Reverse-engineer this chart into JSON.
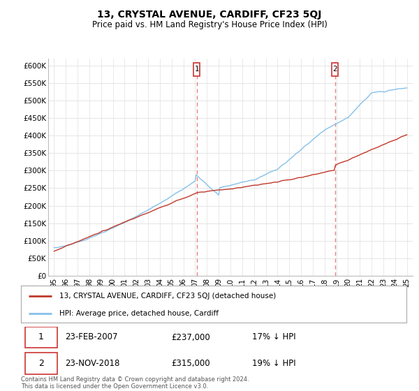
{
  "title": "13, CRYSTAL AVENUE, CARDIFF, CF23 5QJ",
  "subtitle": "Price paid vs. HM Land Registry's House Price Index (HPI)",
  "ylim": [
    0,
    620000
  ],
  "yticks": [
    0,
    50000,
    100000,
    150000,
    200000,
    250000,
    300000,
    350000,
    400000,
    450000,
    500000,
    550000,
    600000
  ],
  "xlim": [
    1994.5,
    2025.5
  ],
  "hpi_color": "#85c1e9",
  "price_color": "#c0392b",
  "dashed_color": "#e8a0a0",
  "background_color": "#ffffff",
  "grid_color": "#e0e0e0",
  "sale1_year": 2007.14,
  "sale2_year": 2018.9,
  "legend_line1": "13, CRYSTAL AVENUE, CARDIFF, CF23 5QJ (detached house)",
  "legend_line2": "HPI: Average price, detached house, Cardiff",
  "table_row1": [
    "1",
    "23-FEB-2007",
    "£237,000",
    "17% ↓ HPI"
  ],
  "table_row2": [
    "2",
    "23-NOV-2018",
    "£315,000",
    "19% ↓ HPI"
  ],
  "footnote": "Contains HM Land Registry data © Crown copyright and database right 2024.\nThis data is licensed under the Open Government Licence v3.0."
}
